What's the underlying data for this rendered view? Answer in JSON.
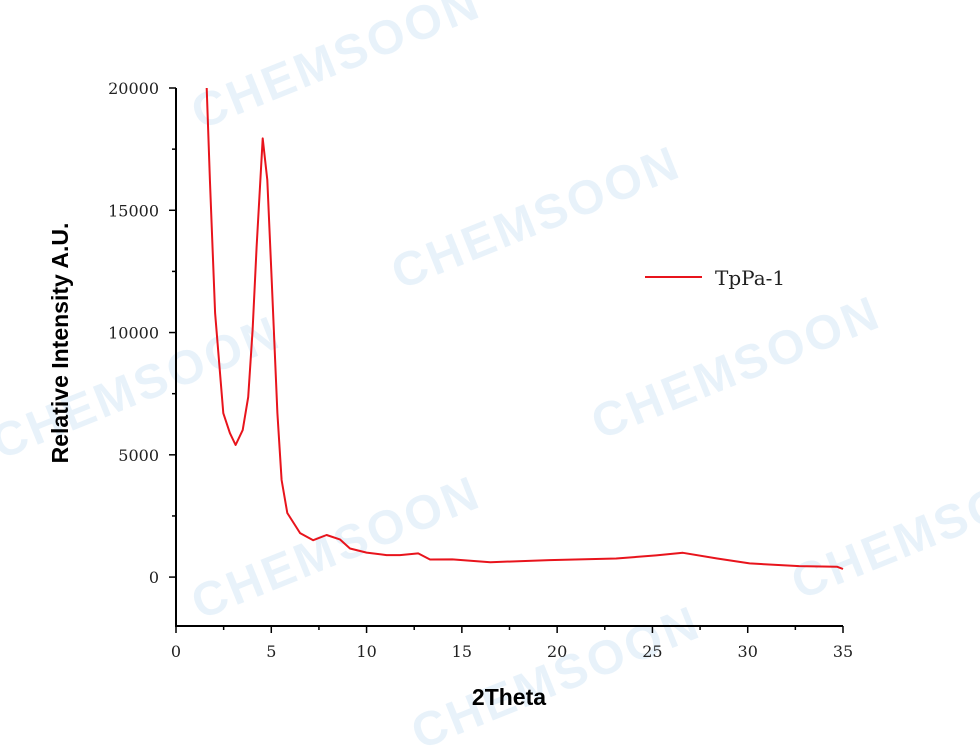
{
  "watermark": "CHEMSOON",
  "chart_data": {
    "type": "line",
    "title": "",
    "xlabel": "2Theta",
    "ylabel": "Relative Intensity A.U.",
    "xlim": [
      0,
      35
    ],
    "ylim": [
      -2000,
      20000
    ],
    "xticks": [
      0,
      5,
      10,
      15,
      20,
      25,
      30,
      35
    ],
    "yticks": [
      0,
      5000,
      10000,
      15000,
      20000
    ],
    "grid": false,
    "legend_position": "right",
    "series": [
      {
        "name": "TpPa-1",
        "color": "#e8141c",
        "x": [
          1.61,
          1.78,
          2.05,
          2.48,
          2.83,
          3.13,
          3.5,
          3.79,
          4.02,
          4.23,
          4.55,
          4.79,
          5.02,
          5.32,
          5.54,
          5.84,
          6.51,
          7.2,
          7.9,
          8.6,
          9.13,
          10.0,
          11.05,
          11.75,
          12.71,
          13.33,
          14.5,
          16.5,
          19.6,
          23.1,
          25.2,
          26.6,
          28.4,
          30.1,
          32.7,
          34.7,
          35.0
        ],
        "y": [
          20000,
          16240,
          10800,
          6700,
          5890,
          5400,
          6010,
          7360,
          10100,
          13500,
          17940,
          16240,
          12150,
          6700,
          3970,
          2620,
          1800,
          1510,
          1720,
          1540,
          1170,
          1000,
          900,
          900,
          970,
          720,
          725,
          610,
          695,
          760,
          885,
          995,
          760,
          560,
          450,
          420,
          330
        ]
      }
    ]
  }
}
